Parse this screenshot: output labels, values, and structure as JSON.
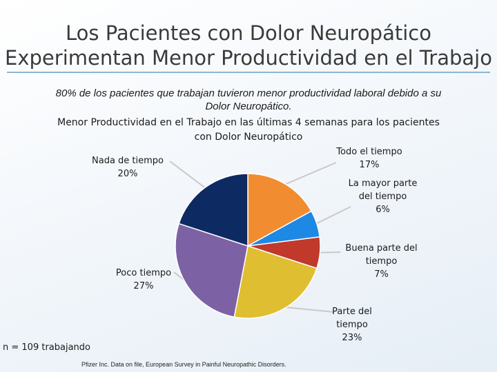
{
  "title_line1": "Los Pacientes con Dolor Neuropático",
  "title_line2": "Experimentan Menor Productividad en el Trabajo",
  "subtitle": "80% de los pacientes que trabajan tuvieron menor productividad laboral debido a su Dolor Neuropático.",
  "chart_data": {
    "type": "pie",
    "title": "Menor Productividad en el Trabajo en las últimas 4 semanas para los pacientes con Dolor Neuropático",
    "slices": [
      {
        "label": "Todo el tiempo",
        "value": 17,
        "display": "17%",
        "color": "#f28c30"
      },
      {
        "label": "La mayor parte del tiempo",
        "value": 6,
        "display": "6%",
        "color": "#1e88e5"
      },
      {
        "label": "Buena parte del tiempo",
        "value": 7,
        "display": "7%",
        "color": "#c0392b"
      },
      {
        "label": "Parte del tiempo",
        "value": 23,
        "display": "23%",
        "color": "#e0be32"
      },
      {
        "label": "Poco tiempo",
        "value": 27,
        "display": "27%",
        "color": "#7c62a4"
      },
      {
        "label": "Nada de tiempo",
        "value": 20,
        "display": "20%",
        "color": "#0d2a63"
      }
    ]
  },
  "note": "n = 109 trabajando",
  "source": "Pfizer Inc. Data on file, European Survey in Painful Neuropathic Disorders."
}
